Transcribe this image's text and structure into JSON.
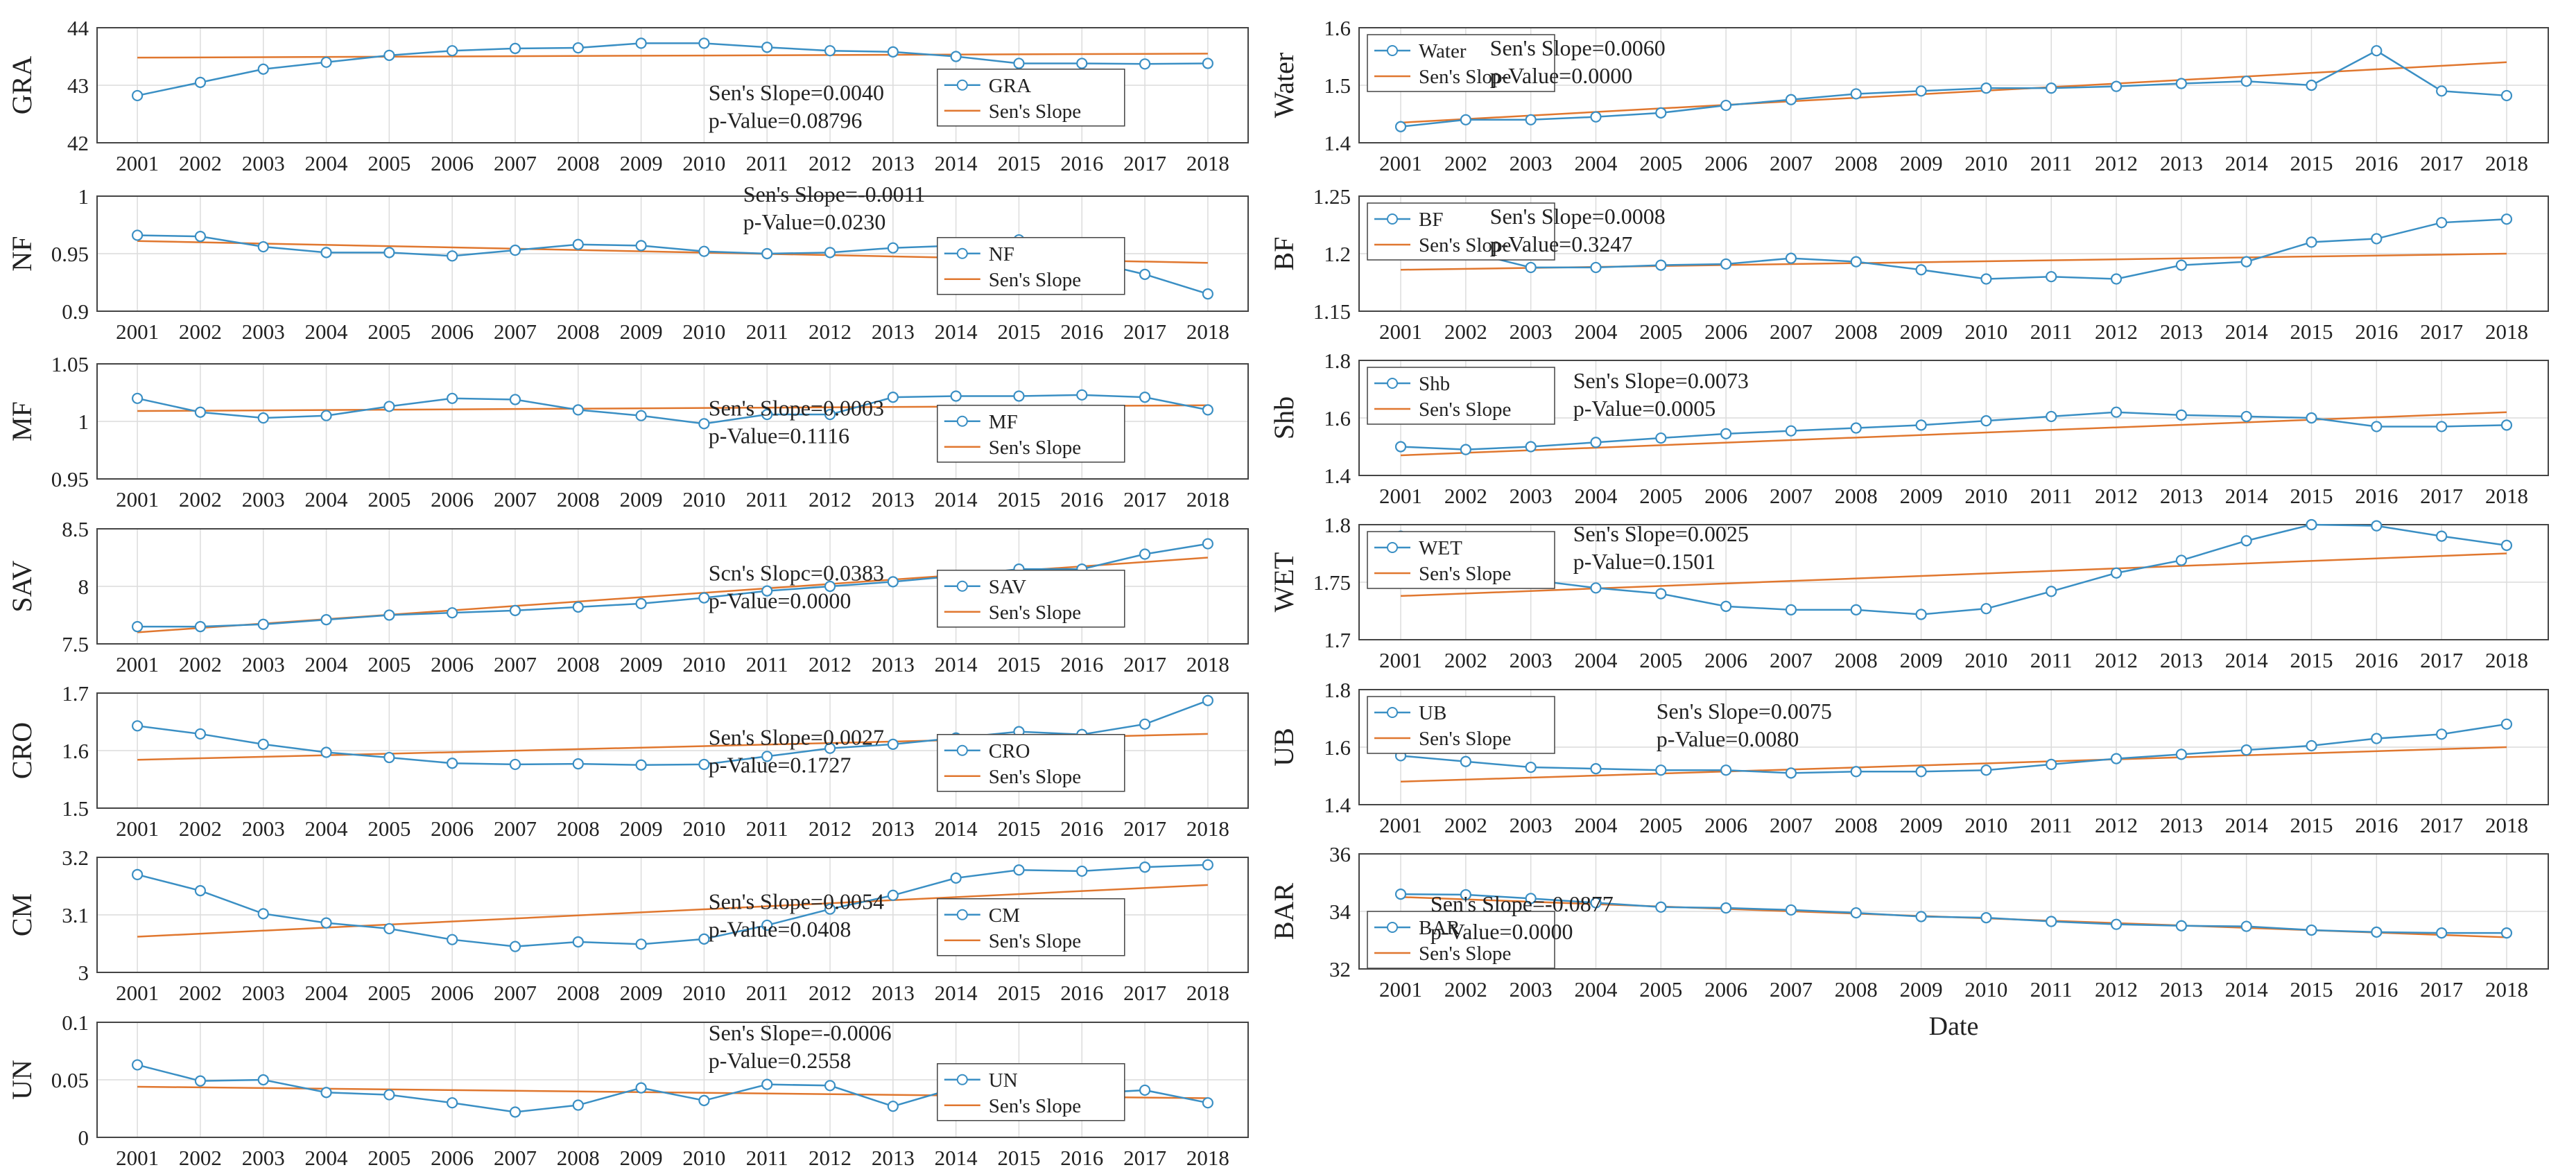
{
  "colors": {
    "series": "#3a8fc4",
    "trend": "#e0772f",
    "grid": "#dcdcdc",
    "axis": "#444444"
  },
  "years": [
    "2001",
    "2002",
    "2003",
    "2004",
    "2005",
    "2006",
    "2007",
    "2008",
    "2009",
    "2010",
    "2011",
    "2012",
    "2013",
    "2014",
    "2015",
    "2016",
    "2017",
    "2018"
  ],
  "legend_trend_label": "Sen's Slope",
  "chart_data": [
    {
      "id": "gra",
      "type": "line",
      "ylabel": "GRA",
      "ylim": [
        42,
        44
      ],
      "yticks": [
        "42",
        "43",
        "44"
      ],
      "values": [
        42.82,
        43.05,
        43.28,
        43.4,
        43.52,
        43.6,
        43.64,
        43.65,
        43.73,
        43.73,
        43.66,
        43.6,
        43.58,
        43.5,
        43.38,
        43.38,
        43.37,
        43.38
      ],
      "trend": [
        43.48,
        43.55
      ],
      "legend_name": "GRA",
      "legend_pos": "right",
      "slope_text": "Sen's Slope=0.0040",
      "p_text": "p-Value=0.08796",
      "xlabel": "",
      "grid": true
    },
    {
      "id": "nf",
      "type": "line",
      "ylabel": "NF",
      "ylim": [
        0.9,
        1
      ],
      "yticks": [
        "0.9",
        "0.95",
        "1"
      ],
      "values": [
        0.966,
        0.965,
        0.956,
        0.951,
        0.951,
        0.948,
        0.953,
        0.958,
        0.957,
        0.952,
        0.95,
        0.951,
        0.955,
        0.957,
        0.962,
        0.945,
        0.932,
        0.915
      ],
      "trend": [
        0.961,
        0.942
      ],
      "legend_name": "NF",
      "legend_pos": "right",
      "slope_text": "Sen's Slope=-0.0011",
      "p_text": "p-Value=0.0230",
      "xlabel": "",
      "grid": true
    },
    {
      "id": "mf",
      "type": "line",
      "ylabel": "MF",
      "ylim": [
        0.95,
        1.05
      ],
      "yticks": [
        "0.95",
        "1",
        "1.05"
      ],
      "values": [
        1.02,
        1.008,
        1.003,
        1.005,
        1.013,
        1.02,
        1.019,
        1.01,
        1.005,
        0.998,
        1.006,
        1.006,
        1.021,
        1.022,
        1.022,
        1.023,
        1.021,
        1.01
      ],
      "trend": [
        1.009,
        1.014
      ],
      "legend_name": "MF",
      "legend_pos": "right",
      "slope_text": "Sen's Slope=0.0003",
      "p_text": "p-Value=0.1116",
      "xlabel": "",
      "grid": true
    },
    {
      "id": "sav",
      "type": "line",
      "ylabel": "SAV",
      "ylim": [
        7.5,
        8.5
      ],
      "yticks": [
        "7.5",
        "8",
        "8.5"
      ],
      "values": [
        7.65,
        7.65,
        7.67,
        7.71,
        7.75,
        7.77,
        7.79,
        7.82,
        7.85,
        7.9,
        7.96,
        8.0,
        8.04,
        8.09,
        8.15,
        8.15,
        8.28,
        8.37
      ],
      "trend": [
        7.6,
        8.25
      ],
      "legend_name": "SAV",
      "legend_pos": "right",
      "slope_text": "Scn's Slopc=0.0383",
      "p_text": "p-Value=0.0000",
      "xlabel": "",
      "grid": true
    },
    {
      "id": "cro",
      "type": "line",
      "ylabel": "CRO",
      "ylim": [
        1.5,
        1.7
      ],
      "yticks": [
        "1.5",
        "1.6",
        "1.7"
      ],
      "values": [
        1.643,
        1.629,
        1.611,
        1.597,
        1.588,
        1.578,
        1.576,
        1.577,
        1.575,
        1.576,
        1.59,
        1.604,
        1.611,
        1.622,
        1.633,
        1.628,
        1.646,
        1.687
      ],
      "trend": [
        1.584,
        1.629
      ],
      "legend_name": "CRO",
      "legend_pos": "right",
      "slope_text": "Sen's Slope=0.0027",
      "p_text": "p-Value=0.1727",
      "xlabel": "",
      "grid": true
    },
    {
      "id": "cm",
      "type": "line",
      "ylabel": "CM",
      "ylim": [
        3,
        3.2
      ],
      "yticks": [
        "3",
        "3.1",
        "3.2"
      ],
      "values": [
        3.17,
        3.142,
        3.102,
        3.086,
        3.076,
        3.057,
        3.045,
        3.053,
        3.049,
        3.058,
        3.082,
        3.11,
        3.134,
        3.164,
        3.178,
        3.176,
        3.183,
        3.187
      ],
      "trend": [
        3.062,
        3.152
      ],
      "legend_name": "CM",
      "legend_pos": "right",
      "slope_text": "Sen's Slope=0.0054",
      "p_text": "p-Value=0.0408",
      "xlabel": "",
      "grid": true
    },
    {
      "id": "un",
      "type": "line",
      "ylabel": "UN",
      "ylim": [
        0,
        0.1
      ],
      "yticks": [
        "0",
        "0.05",
        "0.1"
      ],
      "values": [
        0.063,
        0.049,
        0.05,
        0.039,
        0.037,
        0.03,
        0.022,
        0.028,
        0.043,
        0.032,
        0.046,
        0.045,
        0.027,
        0.043,
        0.047,
        0.038,
        0.041,
        0.03
      ],
      "trend": [
        0.044,
        0.034
      ],
      "legend_name": "UN",
      "legend_pos": "right",
      "slope_text": "Sen's Slope=-0.0006",
      "p_text": "p-Value=0.2558",
      "xlabel": "",
      "grid": true
    },
    {
      "id": "water",
      "type": "line",
      "ylabel": "Water",
      "ylim": [
        1.4,
        1.6
      ],
      "yticks": [
        "1.4",
        "1.5",
        "1.6"
      ],
      "values": [
        1.428,
        1.44,
        1.44,
        1.445,
        1.452,
        1.465,
        1.475,
        1.485,
        1.49,
        1.495,
        1.495,
        1.498,
        1.503,
        1.507,
        1.5,
        1.56,
        1.49,
        1.482
      ],
      "trend": [
        1.435,
        1.54
      ],
      "legend_name": "Water",
      "legend_pos": "left",
      "slope_text": "Sen's Slope=0.0060",
      "p_text": "p-Value=0.0000",
      "xlabel": "",
      "grid": true
    },
    {
      "id": "bf",
      "type": "line",
      "ylabel": "BF",
      "ylim": [
        1.15,
        1.25
      ],
      "yticks": [
        "1.15",
        "1.2",
        "1.25"
      ],
      "values": [
        1.218,
        1.202,
        1.188,
        1.188,
        1.19,
        1.191,
        1.196,
        1.193,
        1.186,
        1.178,
        1.18,
        1.178,
        1.19,
        1.193,
        1.21,
        1.213,
        1.227,
        1.23
      ],
      "trend": [
        1.186,
        1.2
      ],
      "legend_name": "BF",
      "legend_pos": "left",
      "slope_text": "Sen's Slope=0.0008",
      "p_text": "p-Value=0.3247",
      "xlabel": "",
      "grid": true
    },
    {
      "id": "shb",
      "type": "line",
      "ylabel": "Shb",
      "ylim": [
        1.4,
        1.8
      ],
      "yticks": [
        "1.4",
        "1.6",
        "1.8"
      ],
      "values": [
        1.5,
        1.49,
        1.5,
        1.515,
        1.53,
        1.545,
        1.555,
        1.565,
        1.575,
        1.59,
        1.605,
        1.62,
        1.61,
        1.605,
        1.6,
        1.57,
        1.57,
        1.575
      ],
      "trend": [
        1.47,
        1.62
      ],
      "legend_name": "Shb",
      "legend_pos": "left",
      "slope_text": "Sen's Slope=0.0073",
      "p_text": "p-Value=0.0005",
      "xlabel": "",
      "grid": true
    },
    {
      "id": "wet",
      "type": "line",
      "ylabel": "WET",
      "ylim": [
        1.7,
        1.8
      ],
      "yticks": [
        "1.7",
        "1.75",
        "1.8"
      ],
      "values": [
        1.79,
        1.772,
        1.752,
        1.745,
        1.74,
        1.729,
        1.726,
        1.726,
        1.722,
        1.727,
        1.742,
        1.758,
        1.769,
        1.786,
        1.8,
        1.799,
        1.79,
        1.782
      ],
      "trend": [
        1.738,
        1.775
      ],
      "legend_name": "WET",
      "legend_pos": "left",
      "slope_text": "Sen's Slope=0.0025",
      "p_text": "p-Value=0.1501",
      "xlabel": "",
      "grid": true
    },
    {
      "id": "ub",
      "type": "line",
      "ylabel": "UB",
      "ylim": [
        1.4,
        1.8
      ],
      "yticks": [
        "1.4",
        "1.6",
        "1.8"
      ],
      "values": [
        1.57,
        1.55,
        1.53,
        1.525,
        1.52,
        1.52,
        1.51,
        1.515,
        1.515,
        1.52,
        1.54,
        1.56,
        1.575,
        1.59,
        1.605,
        1.63,
        1.645,
        1.68
      ],
      "trend": [
        1.48,
        1.6
      ],
      "legend_name": "UB",
      "legend_pos": "left",
      "slope_text": "Sen's Slope=0.0075",
      "p_text": "p-Value=0.0080",
      "xlabel": "",
      "grid": true
    },
    {
      "id": "bar",
      "type": "line",
      "ylabel": "BAR",
      "ylim": [
        32,
        36
      ],
      "yticks": [
        "32",
        "34",
        "36"
      ],
      "values": [
        34.6,
        34.58,
        34.45,
        34.3,
        34.15,
        34.12,
        34.05,
        33.95,
        33.82,
        33.78,
        33.65,
        33.55,
        33.5,
        33.48,
        33.35,
        33.28,
        33.25,
        33.25
      ],
      "trend": [
        34.5,
        33.1
      ],
      "legend_name": "BAR",
      "legend_pos": "left",
      "slope_text": "Sen's Slope=-0.0877",
      "p_text": "p-Value=0.0000",
      "xlabel": "Date",
      "grid": true
    }
  ]
}
